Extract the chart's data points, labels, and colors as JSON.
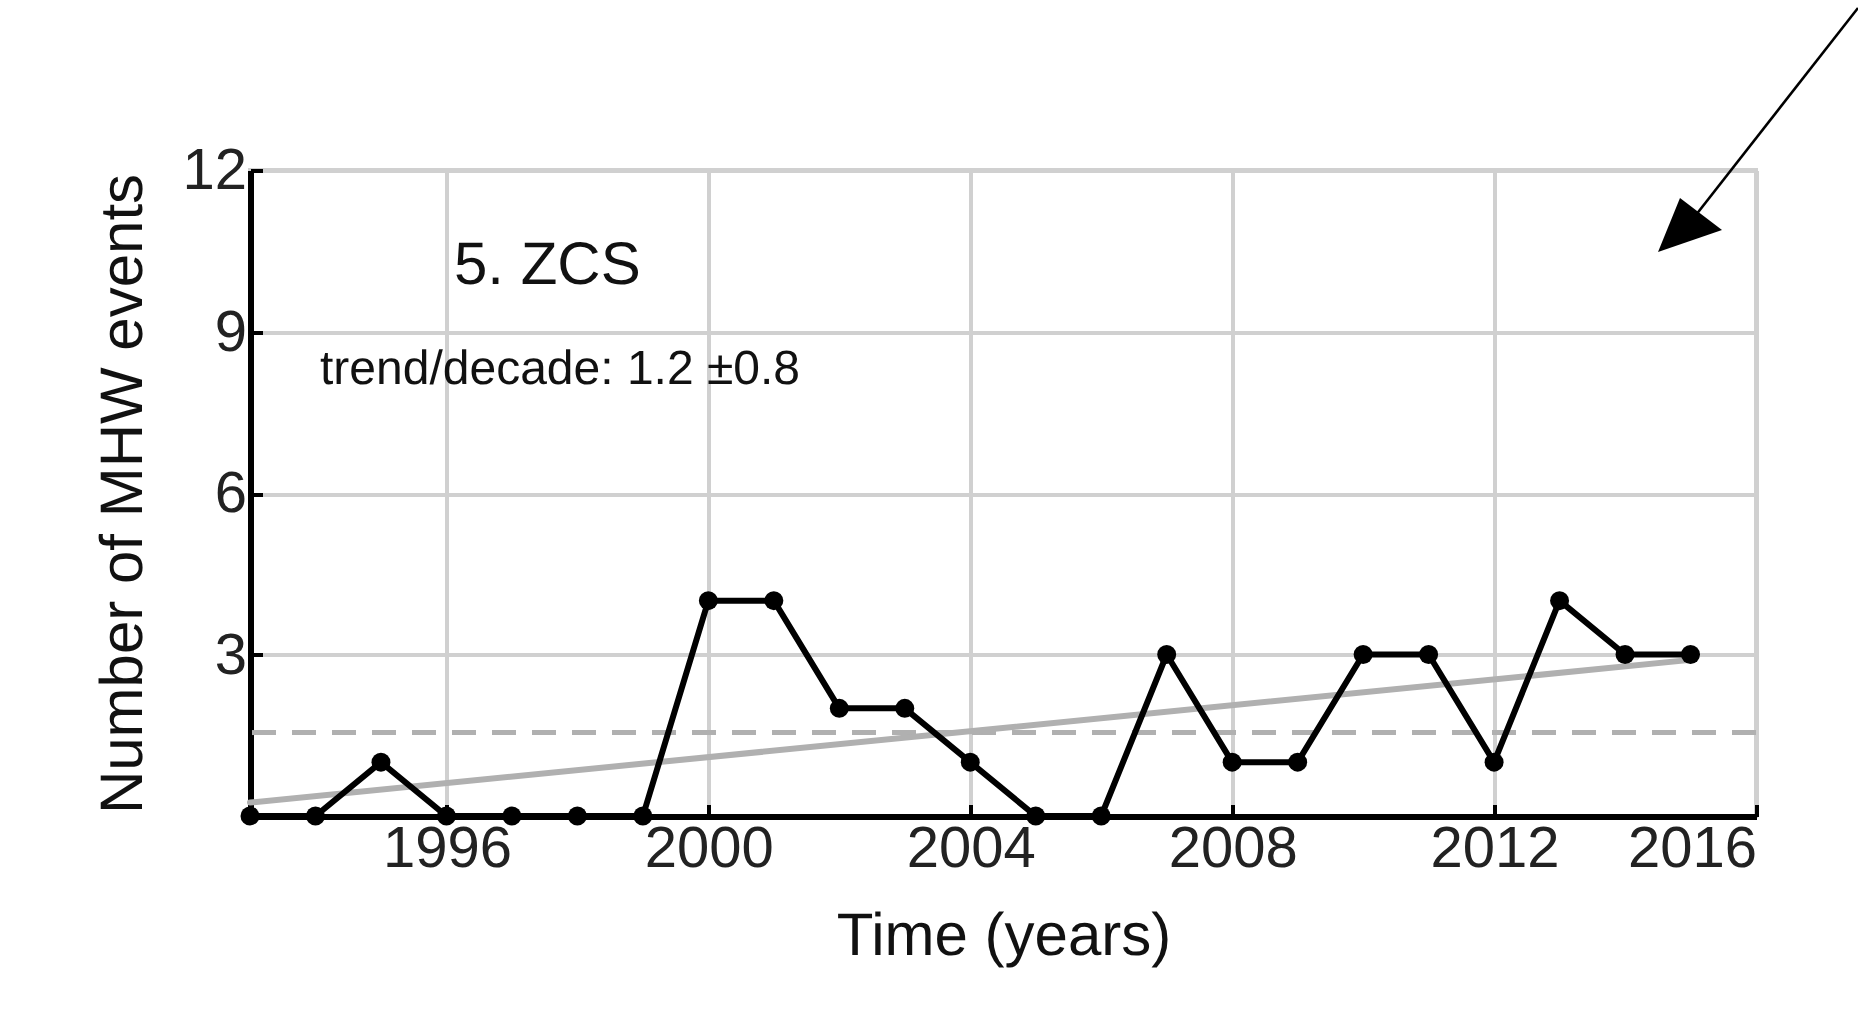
{
  "chart_data": {
    "type": "line",
    "xlabel": "Time (years)",
    "ylabel": "Number of MHW events",
    "annotations": [
      "5. ZCS",
      "trend/decade: 1.2 ±0.8"
    ],
    "x": [
      1993,
      1994,
      1995,
      1996,
      1997,
      1998,
      1999,
      2000,
      2001,
      2002,
      2003,
      2004,
      2005,
      2006,
      2007,
      2008,
      2009,
      2010,
      2011,
      2012,
      2013,
      2014,
      2015
    ],
    "series": [
      {
        "color": "#000000",
        "marker": "circle",
        "values": [
          0,
          0,
          1,
          0,
          0,
          0,
          0,
          4,
          4,
          2,
          2,
          1,
          0,
          0,
          3,
          1,
          1,
          3,
          3,
          1,
          4,
          3,
          3
        ]
      },
      {
        "color": "#b0b0b0",
        "marker": "none",
        "x": [
          1993,
          2015
        ],
        "values": [
          0.25,
          2.9
        ]
      }
    ],
    "ref_lines": [
      {
        "axis": "y",
        "value": 1.55,
        "color": "#b0b0b0",
        "line_style": "dashed"
      }
    ],
    "xlim": [
      1993,
      2016
    ],
    "xticks": [
      1996,
      2000,
      2004,
      2008,
      2012,
      2016
    ],
    "ylim": [
      0,
      12
    ],
    "yticks": [
      3,
      6,
      9,
      12
    ],
    "grid": true
  }
}
